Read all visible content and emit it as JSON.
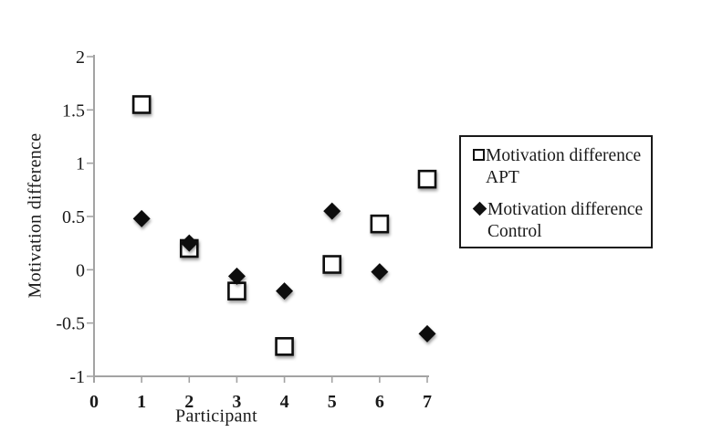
{
  "chart_data": {
    "type": "scatter",
    "title": "",
    "xlabel": "Participant",
    "ylabel": "Motivation difference",
    "xlim": [
      0,
      7
    ],
    "ylim": [
      -1,
      2
    ],
    "x_ticks": [
      0,
      1,
      2,
      3,
      4,
      5,
      6,
      7
    ],
    "y_ticks": [
      2,
      1.5,
      1,
      0.5,
      0,
      -0.5,
      -1
    ],
    "grid": false,
    "legend_position": "right",
    "x": [
      1,
      2,
      3,
      4,
      5,
      6,
      7
    ],
    "series": [
      {
        "name": "Motivation difference APT",
        "marker": "open-square",
        "fill": "#ffffff",
        "stroke": "#111111",
        "values": [
          1.55,
          0.2,
          -0.2,
          -0.72,
          0.05,
          0.43,
          0.85
        ]
      },
      {
        "name": "Motivation difference Control",
        "marker": "filled-diamond",
        "fill": "#111111",
        "stroke": "#111111",
        "values": [
          0.48,
          0.25,
          -0.06,
          -0.2,
          0.55,
          -0.02,
          -0.6
        ]
      }
    ],
    "colors": {
      "axis": "#a3a3a3",
      "text": "#1a1a1a",
      "marker": "#111111",
      "legend_border": "#1a1a1a",
      "background": "#ffffff"
    }
  }
}
